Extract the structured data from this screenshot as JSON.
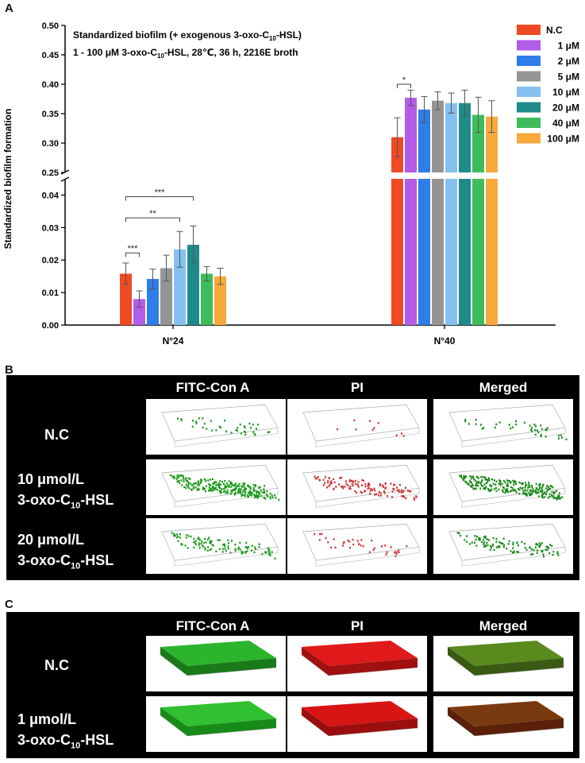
{
  "panels": {
    "a": "A",
    "b": "B",
    "c": "C"
  },
  "chart_data": {
    "type": "bar",
    "annotation": {
      "line1_prefix": "Standardized biofilm (+ exogenous 3-oxo-C",
      "line1_sub": "10",
      "line1_suffix": "-HSL)",
      "line2_prefix": "1 - 100 μM 3-oxo-C",
      "line2_sub": "10",
      "line2_suffix": "-HSL, 28℃, 36 h, 2216E broth"
    },
    "ylabel": "Standardized biofilm formation",
    "categories": [
      "N°24",
      "N°40"
    ],
    "y_ticks_lower": [
      "0.00",
      "0.01",
      "0.02",
      "0.03",
      "0.04"
    ],
    "y_ticks_upper": [
      "0.25",
      "0.30",
      "0.35",
      "0.40",
      "0.45",
      "0.50"
    ],
    "ylim_lower": [
      0,
      0.045
    ],
    "ylim_upper": [
      0.25,
      0.5
    ],
    "series": [
      {
        "name": "N.C",
        "color": "#f04a24",
        "values": [
          0.0158,
          0.31
        ],
        "errors": [
          0.0033,
          0.033
        ]
      },
      {
        "name": "1 μM",
        "color": "#b25ce8",
        "values": [
          0.008,
          0.377
        ],
        "errors": [
          0.0025,
          0.013
        ]
      },
      {
        "name": "2 μM",
        "color": "#2f7de8",
        "values": [
          0.0142,
          0.357
        ],
        "errors": [
          0.003,
          0.022
        ]
      },
      {
        "name": "5 μM",
        "color": "#959595",
        "values": [
          0.0175,
          0.372
        ],
        "errors": [
          0.004,
          0.015
        ]
      },
      {
        "name": "10 μM",
        "color": "#86c0f0",
        "values": [
          0.0233,
          0.368
        ],
        "errors": [
          0.0055,
          0.017
        ]
      },
      {
        "name": "20 μM",
        "color": "#1f8a8a",
        "values": [
          0.0247,
          0.368
        ],
        "errors": [
          0.0058,
          0.022
        ]
      },
      {
        "name": "40 μM",
        "color": "#3dbd5a",
        "values": [
          0.0158,
          0.348
        ],
        "errors": [
          0.0022,
          0.03
        ]
      },
      {
        "name": "100 μM",
        "color": "#f7a93c",
        "values": [
          0.015,
          0.345
        ],
        "errors": [
          0.0025,
          0.027
        ]
      }
    ],
    "significance": [
      {
        "group": 0,
        "from": 0,
        "to": 1,
        "label": "***",
        "y": 0.0222
      },
      {
        "group": 0,
        "from": 0,
        "to": 4,
        "label": "**",
        "y": 0.033
      },
      {
        "group": 0,
        "from": 0,
        "to": 5,
        "label": "***",
        "y": 0.0395
      },
      {
        "group": 1,
        "from": 0,
        "to": 1,
        "label": "*",
        "y": 0.4
      }
    ]
  },
  "panel_b": {
    "columns": [
      "FITC-Con A",
      "PI",
      "Merged"
    ],
    "rows": [
      {
        "line1": "N.C",
        "line2": ""
      },
      {
        "line1": "10 μmol/L",
        "line2_prefix": "3-oxo-C",
        "line2_sub": "10",
        "line2_suffix": "-HSL"
      },
      {
        "line1": "20 μmol/L",
        "line2_prefix": "3-oxo-C",
        "line2_sub": "10",
        "line2_suffix": "-HSL"
      }
    ]
  },
  "panel_c": {
    "columns": [
      "FITC-Con A",
      "PI",
      "Merged"
    ],
    "rows": [
      {
        "line1": "N.C"
      },
      {
        "line1": "1 μmol/L",
        "line2_prefix": "3-oxo-C",
        "line2_sub": "10",
        "line2_suffix": "-HSL"
      }
    ]
  }
}
